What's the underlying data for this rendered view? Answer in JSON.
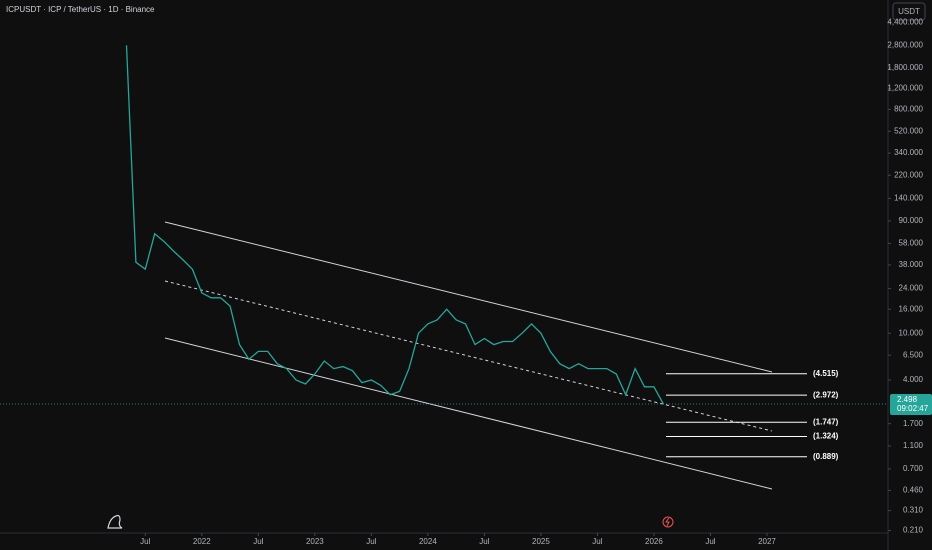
{
  "chart_data": {
    "type": "line",
    "title": "ICPUSDT · ICP / TetherUS · 1D · Binance",
    "currency_button": "USDT",
    "log_scale": true,
    "color": "#26a69a",
    "x": [
      "2021-05",
      "2021-06",
      "2021-07",
      "2021-08",
      "2021-09",
      "2021-10",
      "2021-11",
      "2021-12",
      "2022-01",
      "2022-02",
      "2022-03",
      "2022-04",
      "2022-05",
      "2022-06",
      "2022-07",
      "2022-08",
      "2022-09",
      "2022-10",
      "2022-11",
      "2022-12",
      "2023-01",
      "2023-02",
      "2023-03",
      "2023-04",
      "2023-05",
      "2023-06",
      "2023-07",
      "2023-08",
      "2023-09",
      "2023-10",
      "2023-11",
      "2023-12",
      "2024-01",
      "2024-02",
      "2024-03",
      "2024-04",
      "2024-05",
      "2024-06",
      "2024-07",
      "2024-08",
      "2024-09",
      "2024-10",
      "2024-11",
      "2024-12",
      "2025-01",
      "2025-02",
      "2025-03",
      "2025-04",
      "2025-05",
      "2025-06",
      "2025-07",
      "2025-08",
      "2025-09",
      "2025-10",
      "2025-11",
      "2025-12",
      "2026-01",
      "2026-02"
    ],
    "values": [
      2800,
      40,
      35,
      70,
      60,
      50,
      42,
      35,
      22,
      20,
      20,
      17,
      8,
      6,
      7,
      7,
      5.5,
      5,
      4,
      3.7,
      4.5,
      5.8,
      5,
      5.2,
      4.8,
      3.8,
      4,
      3.6,
      3,
      3.2,
      5,
      10,
      12,
      13,
      16,
      13,
      12,
      8,
      9,
      8,
      8.5,
      8.5,
      10,
      12,
      10,
      7,
      5.5,
      5,
      5.5,
      5,
      5,
      5,
      4.5,
      3,
      5,
      3.5,
      3.5,
      2.498
    ],
    "xlim": [
      "2020-04",
      "2028-01"
    ],
    "xticks": [
      {
        "value": "2021-07",
        "label": "Jul"
      },
      {
        "value": "2022-01",
        "label": "2022"
      },
      {
        "value": "2022-07",
        "label": "Jul"
      },
      {
        "value": "2023-01",
        "label": "2023"
      },
      {
        "value": "2023-07",
        "label": "Jul"
      },
      {
        "value": "2024-01",
        "label": "2024"
      },
      {
        "value": "2024-07",
        "label": "Jul"
      },
      {
        "value": "2025-01",
        "label": "2025"
      },
      {
        "value": "2025-07",
        "label": "Jul"
      },
      {
        "value": "2026-01",
        "label": "2026"
      },
      {
        "value": "2026-07",
        "label": "Jul"
      },
      {
        "value": "2027-01",
        "label": "2027"
      }
    ],
    "ylim": [
      0.2,
      6800
    ],
    "yticks": [
      {
        "value": 4400,
        "label": "4,400.000"
      },
      {
        "value": 2800,
        "label": "2,800.000"
      },
      {
        "value": 1800,
        "label": "1,800.000"
      },
      {
        "value": 1200,
        "label": "1,200.000"
      },
      {
        "value": 800,
        "label": "800.000"
      },
      {
        "value": 520,
        "label": "520.000"
      },
      {
        "value": 340,
        "label": "340.000"
      },
      {
        "value": 220,
        "label": "220.000"
      },
      {
        "value": 140,
        "label": "140.000"
      },
      {
        "value": 90,
        "label": "90.000"
      },
      {
        "value": 58,
        "label": "58.000"
      },
      {
        "value": 38,
        "label": "38.000"
      },
      {
        "value": 24,
        "label": "24.000"
      },
      {
        "value": 16,
        "label": "16.000"
      },
      {
        "value": 10,
        "label": "10.000"
      },
      {
        "value": 6.5,
        "label": "6.500"
      },
      {
        "value": 4,
        "label": "4.000"
      },
      {
        "value": 1.7,
        "label": "1.700"
      },
      {
        "value": 1.1,
        "label": "1.100"
      },
      {
        "value": 0.7,
        "label": "0.700"
      },
      {
        "value": 0.46,
        "label": "0.460"
      },
      {
        "value": 0.31,
        "label": "0.310"
      },
      {
        "value": 0.21,
        "label": "0.210"
      }
    ],
    "last_price": 2.498,
    "countdown": "09:02:47",
    "levels": [
      {
        "value": 4.515,
        "label": "(4.515)"
      },
      {
        "value": 2.972,
        "label": "(2.972)"
      },
      {
        "value": 1.747,
        "label": "(1.747)"
      },
      {
        "value": 1.324,
        "label": "(1.324)"
      },
      {
        "value": 0.889,
        "label": "(0.889)"
      }
    ]
  }
}
